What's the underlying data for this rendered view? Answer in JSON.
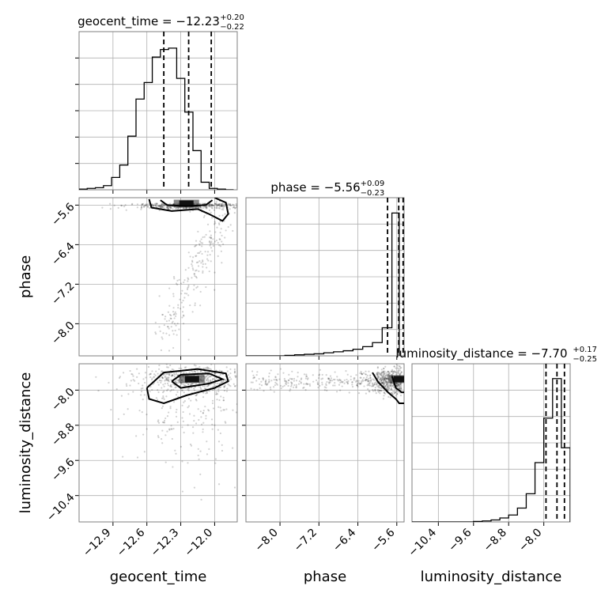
{
  "chart_data": {
    "type": "corner",
    "parameters": [
      "geocent_time",
      "phase",
      "luminosity_distance"
    ],
    "grid": true,
    "axes": {
      "geocent_time": {
        "xlim": [
          -13.2,
          -11.8
        ],
        "ticks": [
          -12.9,
          -12.6,
          -12.3,
          -12.0
        ],
        "tick_labels": [
          "−12.9",
          "−12.6",
          "−12.3",
          "−12.0"
        ],
        "label": "geocent_time"
      },
      "phase": {
        "xlim": [
          -8.7,
          -5.45
        ],
        "ticks": [
          -8.0,
          -7.2,
          -6.4,
          -5.6
        ],
        "tick_labels": [
          "−8.0",
          "−7.2",
          "−6.4",
          "−5.6"
        ],
        "label": "phase",
        "row_range": [
          -8.65,
          -5.45
        ],
        "row_ticks": [
          -8.0,
          -7.2,
          -6.4,
          -5.6
        ],
        "row_tick_labels": [
          "−8.0",
          "−7.2",
          "−6.4",
          "−5.6"
        ]
      },
      "luminosity_distance": {
        "xlim": [
          -11.0,
          -7.4
        ],
        "ticks": [
          -10.4,
          -9.6,
          -8.8,
          -8.0
        ],
        "tick_labels": [
          "−10.4",
          "−9.6",
          "−8.8",
          "−8.0"
        ],
        "label": "luminosity_distance",
        "row_range": [
          -11.0,
          -7.4
        ],
        "row_ticks": [
          -10.4,
          -9.6,
          -8.8,
          -8.0
        ],
        "row_tick_labels": [
          "−10.4",
          "−9.6",
          "−8.8",
          "−8.0"
        ]
      }
    },
    "marginals": [
      {
        "parameter": "geocent_time",
        "title_main": "geocent_time = −12.23",
        "title_sup": "+0.20",
        "title_sub": "−0.22",
        "quantiles": [
          -12.45,
          -12.23,
          -12.03
        ],
        "bin_edges": [
          -13.2,
          -13.128,
          -13.056,
          -12.984,
          -12.912,
          -12.84,
          -12.768,
          -12.696,
          -12.624,
          -12.552,
          -12.48,
          -12.408,
          -12.336,
          -12.264,
          -12.192,
          -12.12,
          -12.048,
          -11.976,
          -11.904,
          -11.832
        ],
        "counts": [
          1,
          2,
          3,
          6,
          18,
          36,
          78,
          132,
          156,
          193,
          204,
          206,
          162,
          113,
          57,
          11,
          2,
          1,
          0
        ],
        "ymax": 230
      },
      {
        "parameter": "phase",
        "title_main": "phase = −5.56",
        "title_sup": "+0.09",
        "title_sub": "−0.23",
        "quantiles": [
          -5.79,
          -5.56,
          -5.47
        ],
        "bin_edges": [
          -8.7,
          -8.5,
          -8.3,
          -8.1,
          -7.9,
          -7.7,
          -7.5,
          -7.3,
          -7.1,
          -6.9,
          -6.7,
          -6.5,
          -6.3,
          -6.1,
          -5.9,
          -5.7,
          -5.55
        ],
        "counts": [
          0,
          0,
          0,
          0,
          1,
          2,
          3,
          4,
          6,
          8,
          10,
          13,
          18,
          26,
          55,
          280
        ],
        "ymax": 310
      },
      {
        "parameter": "luminosity_distance",
        "title_main": "luminosity_distance = −7.70",
        "title_sup": "+0.17",
        "title_sub": "−0.25",
        "quantiles": [
          -7.95,
          -7.7,
          -7.53
        ],
        "bin_edges": [
          -11.0,
          -10.8,
          -10.6,
          -10.4,
          -10.2,
          -10.0,
          -9.8,
          -9.6,
          -9.4,
          -9.2,
          -9.0,
          -8.8,
          -8.6,
          -8.4,
          -8.2,
          -8.0,
          -7.8,
          -7.6,
          -7.4
        ],
        "counts": [
          0,
          0,
          0,
          0,
          0,
          0,
          0,
          1,
          2,
          4,
          8,
          14,
          28,
          57,
          120,
          210,
          290,
          150
        ],
        "ymax": 320
      }
    ],
    "scatter_panels": [
      {
        "x": "geocent_time",
        "y": "phase",
        "mode": [
          -12.25,
          -5.57
        ],
        "contours": [
          [
            [
              -12.58,
              -5.48
            ],
            [
              -12.56,
              -5.65
            ],
            [
              -12.38,
              -5.72
            ],
            [
              -12.15,
              -5.68
            ],
            [
              -12.05,
              -5.78
            ],
            [
              -11.93,
              -5.92
            ],
            [
              -11.88,
              -5.78
            ],
            [
              -11.9,
              -5.55
            ],
            [
              -12.0,
              -5.45
            ]
          ],
          [
            [
              -12.48,
              -5.5
            ],
            [
              -12.42,
              -5.6
            ],
            [
              -12.25,
              -5.62
            ],
            [
              -12.08,
              -5.6
            ],
            [
              -12.02,
              -5.5
            ]
          ]
        ]
      },
      {
        "x": "geocent_time",
        "y": "luminosity_distance",
        "mode": [
          -12.2,
          -7.75
        ],
        "contours": [
          [
            [
              -12.6,
              -7.95
            ],
            [
              -12.58,
              -8.2
            ],
            [
              -12.45,
              -8.3
            ],
            [
              -12.25,
              -8.12
            ],
            [
              -12.0,
              -7.95
            ],
            [
              -11.88,
              -7.8
            ],
            [
              -11.9,
              -7.62
            ],
            [
              -12.15,
              -7.52
            ],
            [
              -12.45,
              -7.6
            ],
            [
              -12.6,
              -7.95
            ]
          ],
          [
            [
              -12.38,
              -7.8
            ],
            [
              -12.3,
              -7.95
            ],
            [
              -12.05,
              -7.85
            ],
            [
              -11.93,
              -7.75
            ],
            [
              -12.05,
              -7.62
            ],
            [
              -12.3,
              -7.65
            ],
            [
              -12.38,
              -7.8
            ]
          ]
        ]
      },
      {
        "x": "phase",
        "y": "luminosity_distance",
        "mode": [
          -5.52,
          -7.75
        ],
        "contours": [
          [
            [
              -6.1,
              -7.6
            ],
            [
              -5.98,
              -7.82
            ],
            [
              -5.78,
              -8.05
            ],
            [
              -5.62,
              -8.2
            ],
            [
              -5.55,
              -8.3
            ],
            [
              -5.45,
              -8.3
            ]
          ],
          [
            [
              -5.7,
              -7.68
            ],
            [
              -5.62,
              -7.95
            ],
            [
              -5.5,
              -8.05
            ],
            [
              -5.45,
              -8.05
            ]
          ]
        ]
      }
    ],
    "colors": {
      "hist": "#000000",
      "grid": "#b0b0b0",
      "points": "#000000",
      "density_dark": "#111111"
    }
  }
}
